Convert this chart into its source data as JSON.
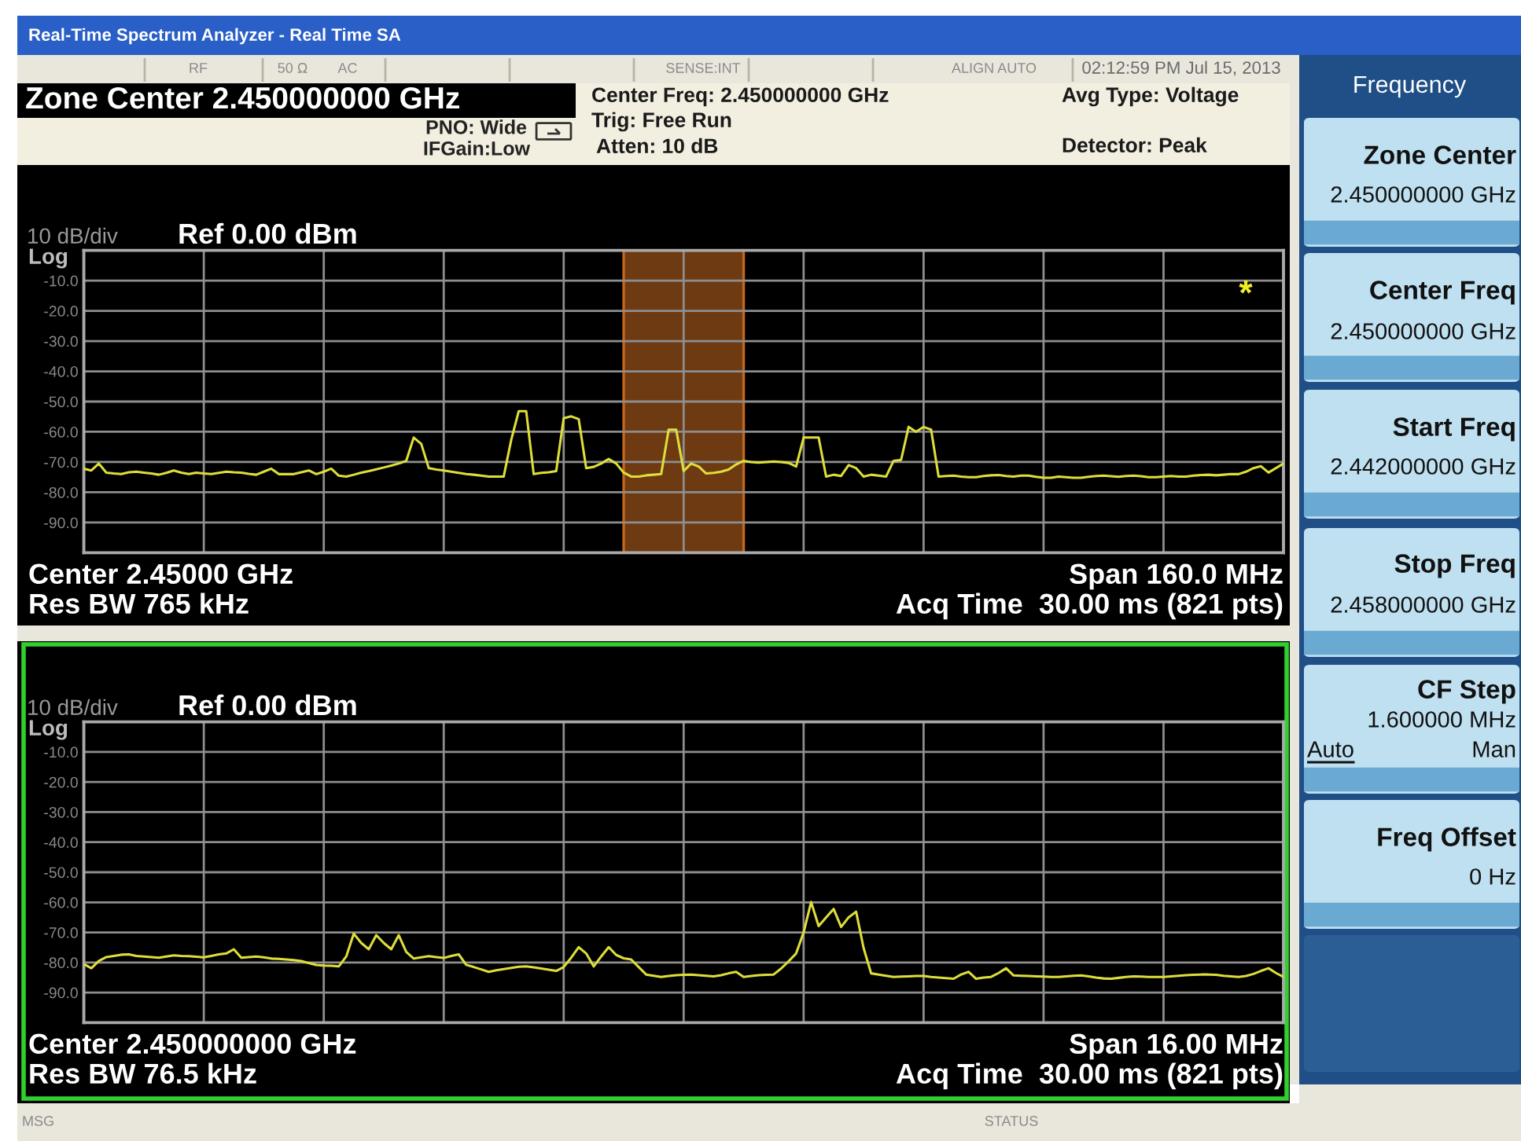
{
  "chart_data": [
    {
      "type": "line",
      "title": "Real-Time Spectrum Analyzer - Real Time SA",
      "categories": [
        null,
        null,
        null,
        null,
        null,
        null,
        null,
        null,
        null,
        null,
        null,
        null,
        null,
        null,
        null,
        null,
        null,
        null,
        null,
        null,
        null,
        null,
        null,
        null,
        null,
        null,
        null,
        null,
        null,
        null,
        null,
        null,
        null,
        null,
        null,
        null,
        null,
        null,
        null,
        null,
        null,
        null,
        null,
        null,
        null,
        null,
        null,
        null,
        null,
        null,
        null,
        null,
        null,
        null,
        null,
        null,
        null,
        null,
        null,
        null,
        null,
        null,
        null,
        null,
        null,
        null,
        null,
        null,
        null,
        null,
        null,
        null,
        null,
        null,
        null,
        null,
        null,
        null,
        null,
        null,
        null,
        null,
        null,
        null,
        null,
        null,
        null,
        null,
        null,
        null,
        null,
        null,
        null,
        null,
        null,
        null,
        null,
        null,
        null,
        null,
        null,
        null,
        null,
        null,
        null,
        null,
        null,
        null,
        null,
        null,
        null,
        null,
        null,
        null,
        null,
        null,
        null,
        null,
        null,
        null,
        null,
        null,
        null,
        null,
        null,
        null,
        null,
        null,
        null,
        null,
        null,
        null,
        null,
        null,
        null,
        null,
        null,
        null,
        null,
        null,
        null,
        null,
        null,
        null,
        null,
        null,
        null,
        null,
        null,
        null,
        null,
        null,
        null,
        null,
        null,
        null,
        null,
        null,
        null,
        null,
        null
      ],
      "series": [
        {
          "color": "#dede3a",
          "values": [
            -72.2,
            -72.8,
            -70.5,
            -73.5,
            -73.8,
            -74.0,
            -73.4,
            -73.2,
            -73.5,
            -73.8,
            -74.2,
            -73.6,
            -72.8,
            -73.5,
            -74.0,
            -73.5,
            -73.8,
            -74.0,
            -73.6,
            -73.2,
            -73.4,
            -73.5,
            -73.9,
            -74.2,
            -73.2,
            -72.2,
            -74.0,
            -74.0,
            -74.0,
            -73.4,
            -72.8,
            -74.0,
            -73.2,
            -72.2,
            -74.5,
            -74.8,
            -74.2,
            -73.5,
            -73.0,
            -72.4,
            -71.8,
            -71.2,
            -70.5,
            -69.6,
            -61.9,
            -64.0,
            -72.0,
            -72.5,
            -72.8,
            -73.2,
            -73.6,
            -74.0,
            -74.2,
            -74.5,
            -74.8,
            -74.8,
            -74.8,
            -62.7,
            -53.2,
            -53.2,
            -74.0,
            -73.6,
            -73.4,
            -73.0,
            -55.5,
            -54.9,
            -55.8,
            -72.0,
            -71.6,
            -70.5,
            -69.0,
            -70.5,
            -73.5,
            -74.8,
            -74.8,
            -74.4,
            -74.2,
            -74.0,
            -59.3,
            -59.3,
            -73.0,
            -70.5,
            -71.5,
            -73.8,
            -73.6,
            -73.2,
            -72.5,
            -70.8,
            -69.6,
            -70.0,
            -70.2,
            -70.0,
            -69.8,
            -70.0,
            -70.3,
            -71.5,
            -61.9,
            -61.9,
            -61.9,
            -74.8,
            -74.2,
            -74.6,
            -71.0,
            -72.0,
            -74.8,
            -74.2,
            -74.5,
            -74.8,
            -69.6,
            -69.3,
            -58.4,
            -60.0,
            -58.4,
            -59.3,
            -74.8,
            -74.6,
            -74.5,
            -74.8,
            -75.0,
            -75.0,
            -74.6,
            -74.4,
            -74.3,
            -74.6,
            -74.8,
            -74.5,
            -74.5,
            -74.9,
            -75.2,
            -75.2,
            -74.8,
            -75.0,
            -75.2,
            -75.2,
            -74.9,
            -74.6,
            -74.5,
            -74.7,
            -74.9,
            -74.6,
            -74.5,
            -74.7,
            -75.0,
            -75.0,
            -74.8,
            -74.6,
            -74.8,
            -74.8,
            -74.5,
            -74.3,
            -74.2,
            -74.4,
            -74.2,
            -74.0,
            -74.0,
            -73.2,
            -72.0,
            -71.4,
            -73.5,
            -72.0,
            -70.5
          ]
        }
      ],
      "ylim": [
        -100,
        0
      ],
      "yticks": [
        {
          "value": -10,
          "label": "-10.0"
        },
        {
          "value": -20,
          "label": "-20.0"
        },
        {
          "value": -30,
          "label": "-30.0"
        },
        {
          "value": -40,
          "label": "-40.0"
        },
        {
          "value": -50,
          "label": "-50.0"
        },
        {
          "value": -60,
          "label": "-60.0"
        },
        {
          "value": -70,
          "label": "-70.0"
        },
        {
          "value": -80,
          "label": "-80.0"
        },
        {
          "value": -90,
          "label": "-90.0"
        }
      ],
      "grid": true,
      "tick_labels": "y",
      "annotations": [
        "10 dB/div",
        "Log",
        "Ref 0.00 dBm",
        "Center 2.45000 GHz",
        "Res BW 765 kHz",
        "Span 160.0 MHz",
        "Acq Time  30.00 ms (821 pts)",
        "*",
        "RF",
        "50 Ω",
        "AC",
        "SENSE:INT",
        "ALIGN AUTO",
        "02:12:59 PM Jul 15, 2013",
        "Zone Center 2.450000000 GHz",
        "PNO: Wide",
        "IFGain:Low",
        "Center Freq: 2.450000000 GHz",
        "Trig: Free Run",
        "Atten: 10 dB",
        "Avg Type: Voltage",
        "Detector: Peak",
        "MSG",
        "STATUS",
        "Frequency",
        "Zone Center",
        "2.450000000 GHz",
        "Center Freq",
        "2.450000000 GHz",
        "Start Freq",
        "2.442000000 GHz",
        "Stop Freq",
        "2.458000000 GHz",
        "CF Step",
        "1.600000 MHz",
        "Auto",
        "Man",
        "Freq Offset",
        "0 Hz"
      ]
    },
    {
      "type": "line",
      "categories": [
        null,
        null,
        null,
        null,
        null,
        null,
        null,
        null,
        null,
        null,
        null,
        null,
        null,
        null,
        null,
        null,
        null,
        null,
        null,
        null,
        null,
        null,
        null,
        null,
        null,
        null,
        null,
        null,
        null,
        null,
        null,
        null,
        null,
        null,
        null,
        null,
        null,
        null,
        null,
        null,
        null,
        null,
        null,
        null,
        null,
        null,
        null,
        null,
        null,
        null,
        null,
        null,
        null,
        null,
        null,
        null,
        null,
        null,
        null,
        null,
        null,
        null,
        null,
        null,
        null,
        null,
        null,
        null,
        null,
        null,
        null,
        null,
        null,
        null,
        null,
        null,
        null,
        null,
        null,
        null,
        null,
        null,
        null,
        null,
        null,
        null,
        null,
        null,
        null,
        null,
        null,
        null,
        null,
        null,
        null,
        null,
        null,
        null,
        null,
        null,
        null,
        null,
        null,
        null,
        null,
        null,
        null,
        null,
        null,
        null,
        null,
        null,
        null,
        null,
        null,
        null,
        null,
        null,
        null,
        null,
        null,
        null,
        null,
        null,
        null,
        null,
        null,
        null,
        null,
        null,
        null,
        null,
        null,
        null,
        null,
        null,
        null,
        null,
        null,
        null,
        null,
        null,
        null,
        null,
        null,
        null,
        null,
        null,
        null,
        null,
        null,
        null,
        null,
        null,
        null,
        null,
        null,
        null,
        null,
        null,
        null
      ],
      "series": [
        {
          "color": "#dede3a",
          "values": [
            -80.5,
            -81.9,
            -79.5,
            -78.2,
            -77.8,
            -77.4,
            -77.3,
            -77.8,
            -78.0,
            -78.2,
            -78.4,
            -78.0,
            -77.6,
            -77.8,
            -77.9,
            -78.1,
            -78.3,
            -77.8,
            -77.3,
            -77.0,
            -75.6,
            -78.4,
            -78.2,
            -78.0,
            -78.3,
            -78.7,
            -78.8,
            -79.0,
            -79.2,
            -79.5,
            -80.2,
            -80.8,
            -81.0,
            -81.1,
            -81.3,
            -78.0,
            -70.4,
            -73.5,
            -75.6,
            -70.9,
            -73.5,
            -75.6,
            -70.9,
            -76.5,
            -78.7,
            -78.3,
            -77.9,
            -78.2,
            -78.5,
            -77.8,
            -77.3,
            -80.8,
            -81.5,
            -82.3,
            -83.1,
            -82.6,
            -82.2,
            -81.8,
            -81.4,
            -81.3,
            -81.6,
            -82.0,
            -82.4,
            -82.8,
            -81.5,
            -78.4,
            -74.9,
            -77.0,
            -81.3,
            -78.0,
            -74.9,
            -77.5,
            -78.6,
            -79.0,
            -81.5,
            -84.0,
            -84.4,
            -84.8,
            -84.5,
            -84.2,
            -84.1,
            -84.0,
            -84.2,
            -84.4,
            -84.6,
            -84.2,
            -83.6,
            -83.1,
            -84.8,
            -84.5,
            -84.2,
            -84.1,
            -84.0,
            -82.0,
            -79.6,
            -77.0,
            -70.0,
            -59.9,
            -67.9,
            -65.0,
            -62.2,
            -68.2,
            -65.0,
            -63.1,
            -75.2,
            -83.6,
            -84.0,
            -84.4,
            -84.8,
            -84.7,
            -84.6,
            -84.5,
            -84.5,
            -84.8,
            -85.0,
            -85.2,
            -85.4,
            -84.0,
            -83.1,
            -85.4,
            -85.0,
            -84.8,
            -83.5,
            -81.9,
            -84.3,
            -84.4,
            -84.5,
            -84.6,
            -84.7,
            -84.8,
            -84.8,
            -84.6,
            -84.4,
            -84.3,
            -84.6,
            -85.0,
            -85.3,
            -85.4,
            -85.1,
            -84.8,
            -84.6,
            -84.7,
            -84.8,
            -84.8,
            -84.8,
            -84.6,
            -84.4,
            -84.2,
            -84.1,
            -84.0,
            -84.0,
            -84.1,
            -84.4,
            -84.6,
            -84.8,
            -84.5,
            -83.8,
            -82.8,
            -81.9,
            -83.5,
            -84.8
          ]
        }
      ],
      "ylim": [
        -100,
        0
      ],
      "yticks": [
        {
          "value": -10,
          "label": "-10.0"
        },
        {
          "value": -20,
          "label": "-20.0"
        },
        {
          "value": -30,
          "label": "-30.0"
        },
        {
          "value": -40,
          "label": "-40.0"
        },
        {
          "value": -50,
          "label": "-50.0"
        },
        {
          "value": -60,
          "label": "-60.0"
        },
        {
          "value": -70,
          "label": "-70.0"
        },
        {
          "value": -80,
          "label": "-80.0"
        },
        {
          "value": -90,
          "label": "-90.0"
        }
      ],
      "grid": true,
      "tick_labels": "y",
      "annotations": [
        "10 dB/div",
        "Log",
        "Ref 0.00 dBm",
        "Center 2.450000000 GHz",
        "Res BW 76.5 kHz",
        "Span 16.00 MHz",
        "Acq Time  30.00 ms (821 pts)"
      ]
    }
  ]
}
